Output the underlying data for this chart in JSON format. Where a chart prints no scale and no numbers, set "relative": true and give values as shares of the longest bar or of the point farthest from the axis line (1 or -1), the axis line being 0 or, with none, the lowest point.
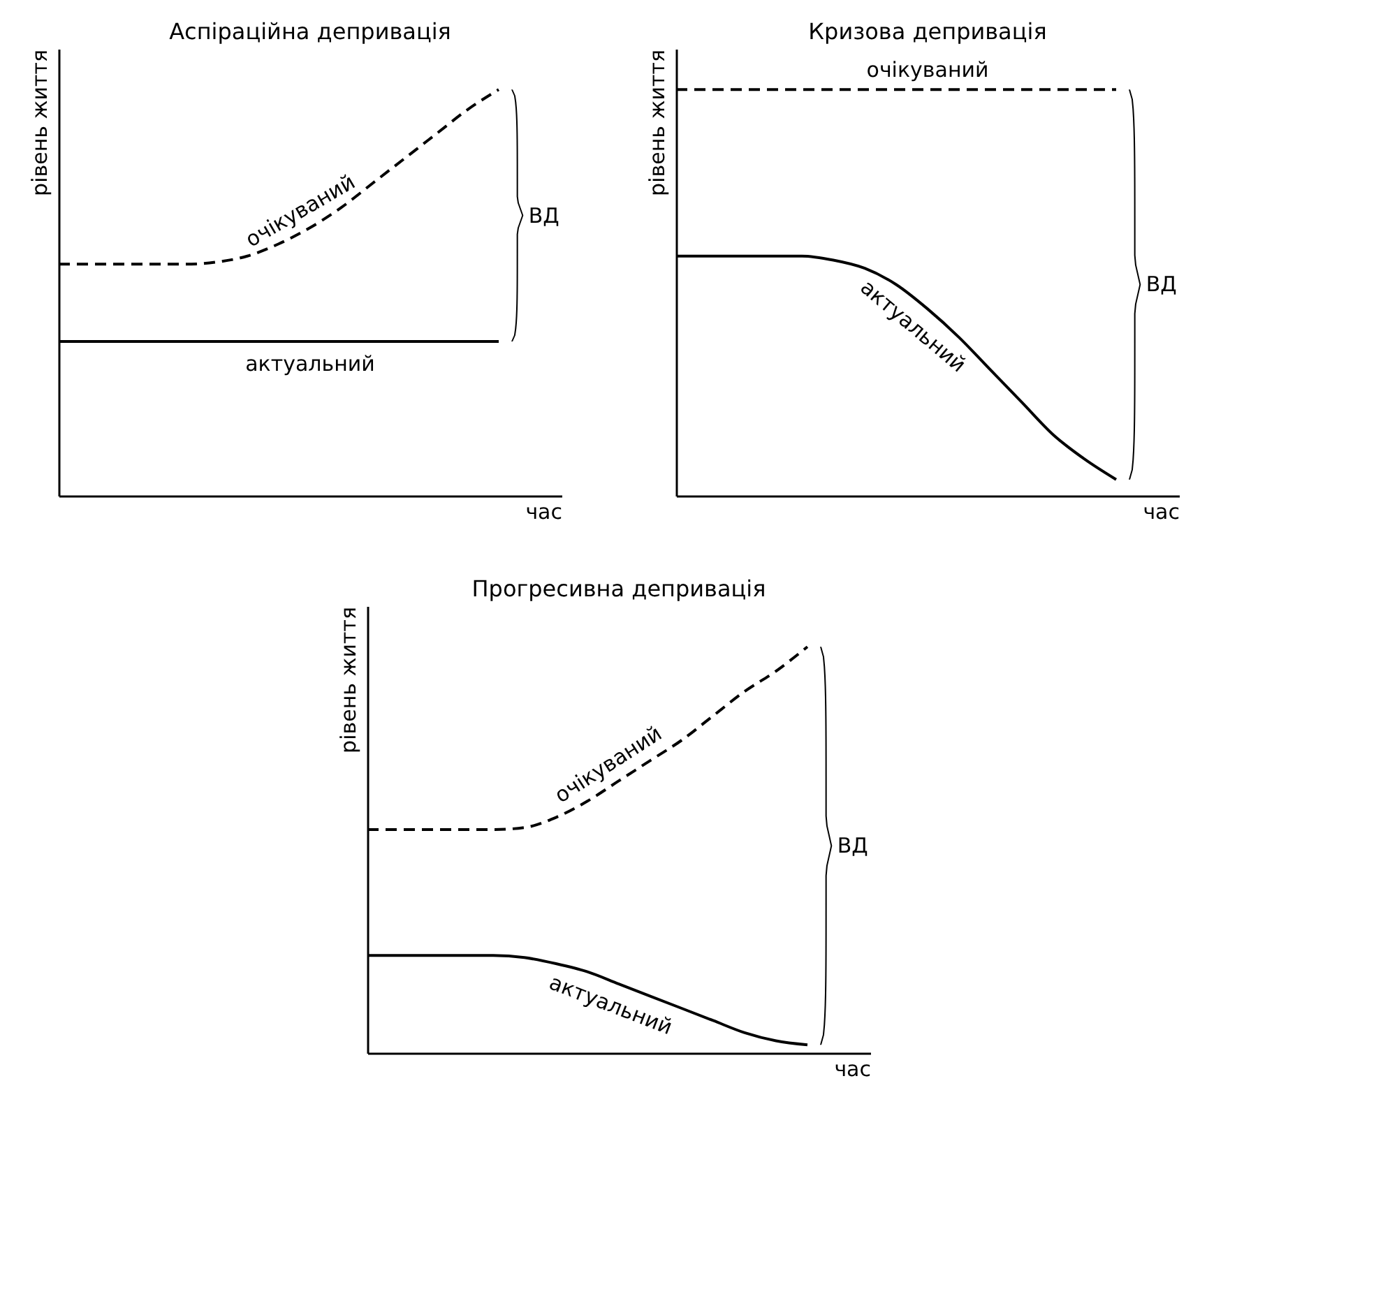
{
  "chart_data": [
    {
      "type": "line",
      "title": "Аспіраційна депривація",
      "ylabel": "рівень життя",
      "xlabel": "час",
      "relative": true,
      "tick_labels": false,
      "annotations": [
        "ВД"
      ],
      "categories": [
        null,
        null,
        null,
        null,
        null,
        null,
        null,
        null,
        null,
        null,
        null,
        null,
        null,
        null,
        null
      ],
      "series": [
        {
          "name": "очікуваний",
          "color": "#000000",
          "line_style": "dashed",
          "values": [
            0.57,
            0.57,
            0.57,
            0.57,
            0.57,
            0.575,
            0.59,
            0.62,
            0.66,
            0.71,
            0.77,
            0.83,
            0.89,
            0.95,
            1
          ]
        },
        {
          "name": "актуальний",
          "color": "#000000",
          "line_style": "solid",
          "values": [
            0.38,
            0.38,
            0.38,
            0.38,
            0.38,
            0.38,
            0.38,
            0.38,
            0.38,
            0.38,
            0.38,
            0.38,
            0.38,
            0.38,
            0.38
          ]
        }
      ]
    },
    {
      "type": "line",
      "title": "Кризова депривація",
      "ylabel": "рівень життя",
      "xlabel": "час",
      "relative": true,
      "tick_labels": false,
      "annotations": [
        "ВД"
      ],
      "categories": [
        null,
        null,
        null,
        null,
        null,
        null,
        null,
        null,
        null,
        null,
        null,
        null,
        null,
        null,
        null
      ],
      "series": [
        {
          "name": "очікуваний",
          "color": "#000000",
          "line_style": "dashed",
          "values": [
            1,
            1,
            1,
            1,
            1,
            1,
            1,
            1,
            1,
            1,
            1,
            1,
            1,
            1,
            1
          ]
        },
        {
          "name": "актуальний",
          "color": "#000000",
          "line_style": "solid",
          "values": [
            0.59,
            0.59,
            0.59,
            0.59,
            0.59,
            0.58,
            0.56,
            0.52,
            0.46,
            0.39,
            0.31,
            0.23,
            0.15,
            0.09,
            0.04
          ]
        }
      ]
    },
    {
      "type": "line",
      "title": "Прогресивна депривація",
      "ylabel": "рівень життя",
      "xlabel": "час",
      "relative": true,
      "tick_labels": false,
      "annotations": [
        "ВД"
      ],
      "categories": [
        null,
        null,
        null,
        null,
        null,
        null,
        null,
        null,
        null,
        null,
        null,
        null,
        null,
        null,
        null
      ],
      "series": [
        {
          "name": "очікуваний",
          "color": "#000000",
          "line_style": "dashed",
          "values": [
            0.55,
            0.55,
            0.55,
            0.55,
            0.55,
            0.555,
            0.58,
            0.62,
            0.67,
            0.72,
            0.77,
            0.83,
            0.89,
            0.94,
            1
          ]
        },
        {
          "name": "актуальний",
          "color": "#000000",
          "line_style": "solid",
          "values": [
            0.24,
            0.24,
            0.24,
            0.24,
            0.24,
            0.235,
            0.22,
            0.2,
            0.17,
            0.14,
            0.11,
            0.08,
            0.05,
            0.03,
            0.02
          ]
        }
      ]
    }
  ]
}
